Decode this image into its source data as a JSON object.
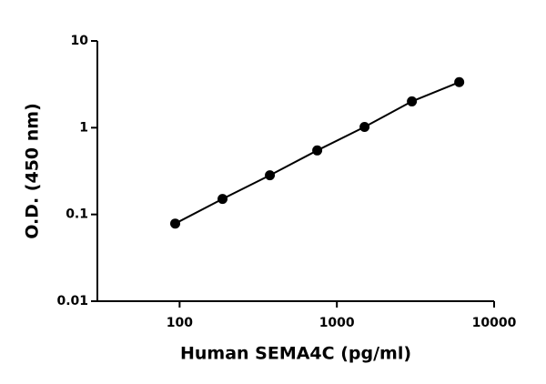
{
  "chart_data": {
    "type": "scatter",
    "x_label": "Human SEMA4C (pg/ml)",
    "y_label": "O.D. (450 nm)",
    "x": [
      93.75,
      187.5,
      375,
      750,
      1500,
      3000,
      6000
    ],
    "values": [
      0.0785,
      0.151,
      0.283,
      0.547,
      1.02,
      2.01,
      3.35
    ],
    "color": "#000000",
    "line": true,
    "xlog": true,
    "ylog": true,
    "xlim": [
      30,
      10000
    ],
    "ylim": [
      0.01,
      10
    ],
    "xticks": [
      100,
      1000,
      10000
    ],
    "yticks": [
      0.01,
      0.1,
      1,
      10
    ],
    "grid": false
  }
}
